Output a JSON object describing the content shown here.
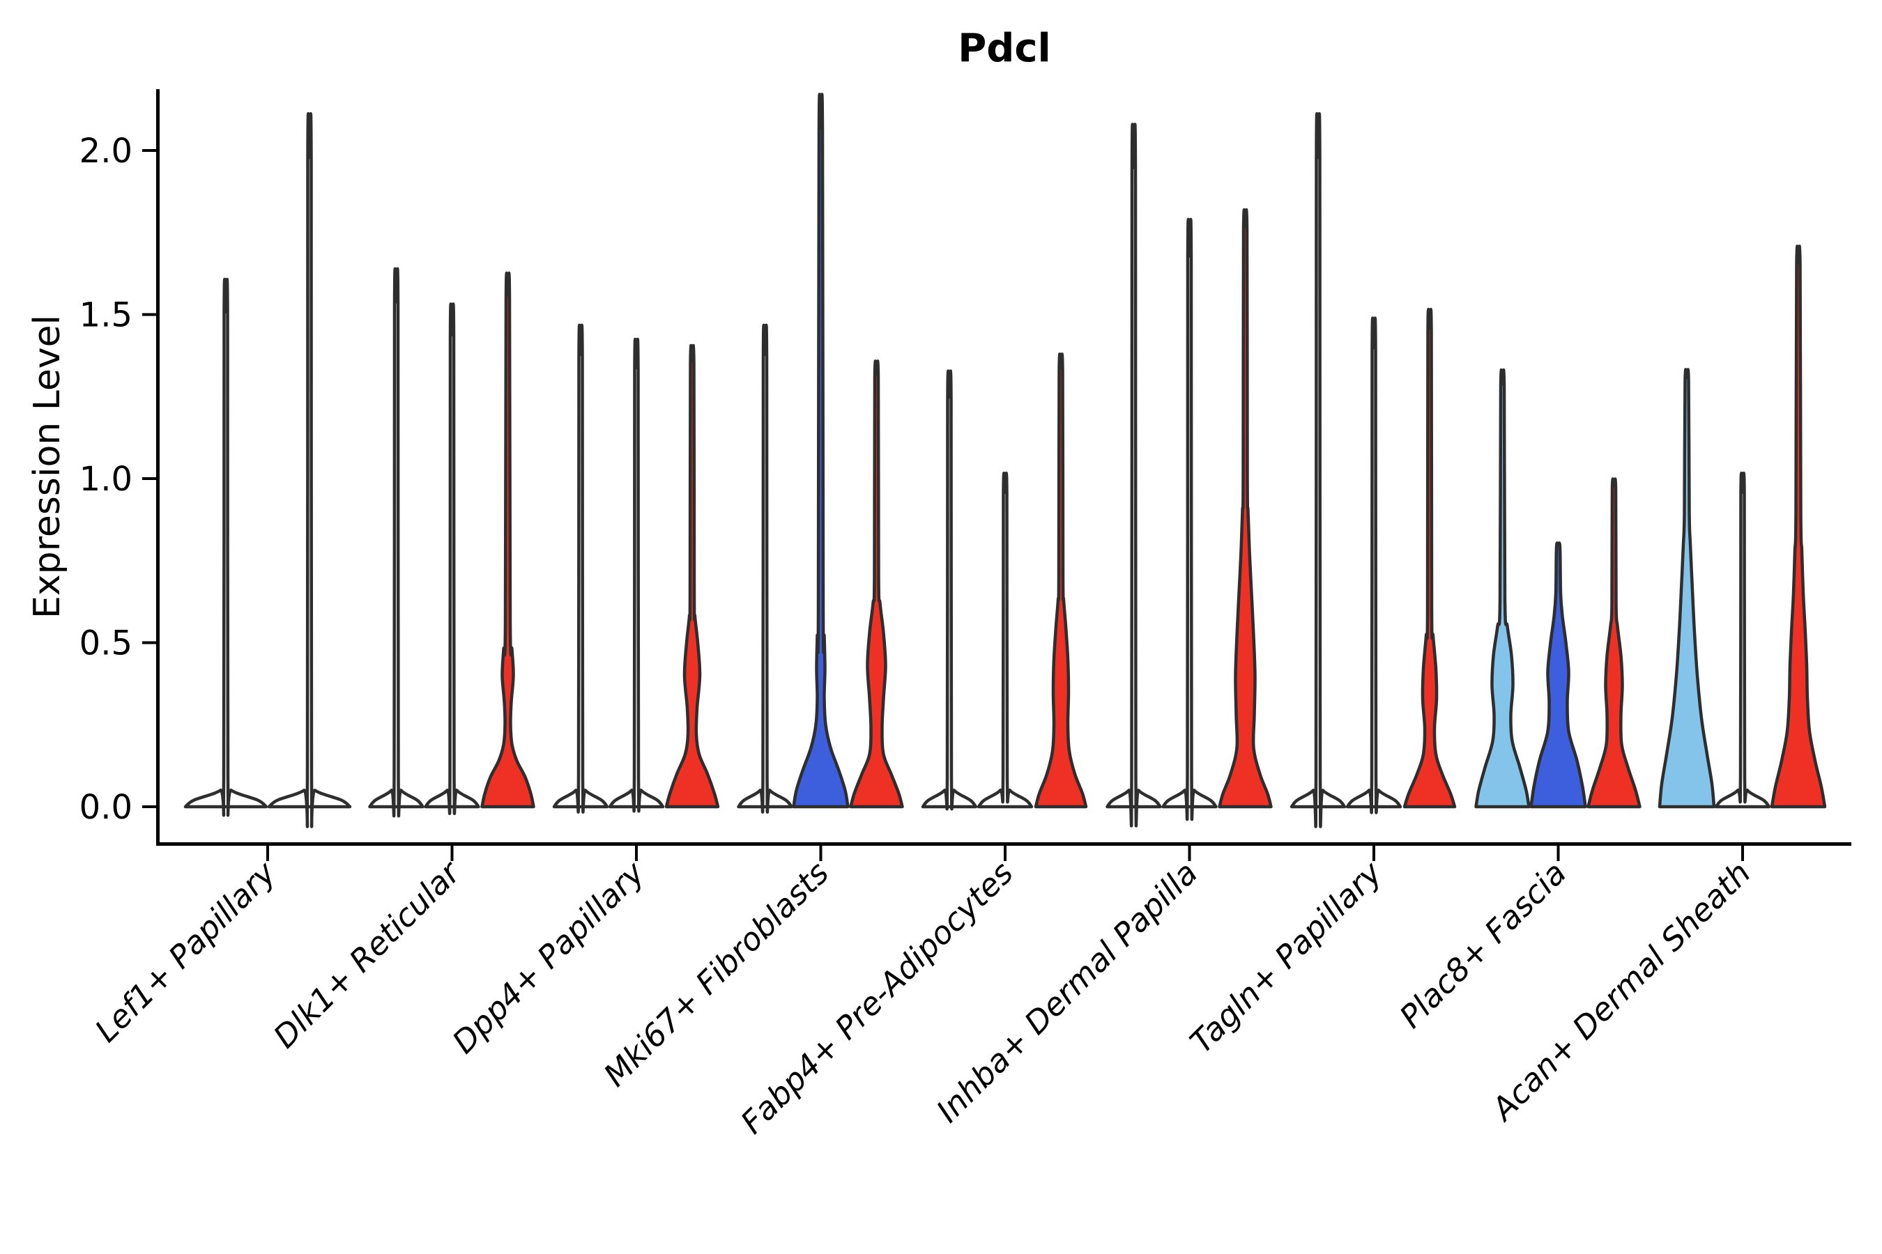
{
  "title": "Pdcl",
  "y_axis": {
    "label": "Expression Level",
    "ticks": [
      {
        "value": 0.0,
        "label": "0.0"
      },
      {
        "value": 0.5,
        "label": "0.5"
      },
      {
        "value": 1.0,
        "label": "1.0"
      },
      {
        "value": 1.5,
        "label": "1.5"
      },
      {
        "value": 2.0,
        "label": "2.0"
      }
    ]
  },
  "palette": {
    "red": "#EF3125",
    "blue": "#3D5FDD",
    "light_blue": "#85C4EA",
    "none": "#FFFFFF",
    "outline": "#2E2E2E",
    "axis": "#000000"
  },
  "chart_data": {
    "type": "violin",
    "title": "Pdcl",
    "xlabel": "",
    "ylabel": "Expression Level",
    "ylim": [
      -0.11,
      2.19
    ],
    "ytick_values": [
      0.0,
      0.5,
      1.0,
      1.5,
      2.0
    ],
    "legend": "none",
    "grid": false,
    "categories": [
      "Lef1+ Papillary",
      "Dlk1+ Reticular",
      "Dpp4+ Papillary",
      "Mki67+ Fibroblasts",
      "Fabp4+ Pre-Adipocytes",
      "Inhba+ Dermal Papilla",
      "Tagln+ Papillary",
      "Plac8+ Fascia",
      "Acan+ Dermal Sheath"
    ],
    "groups": [
      {
        "category": "Lef1+ Papillary",
        "violins": [
          {
            "color": "#FFFFFF",
            "max": 1.5,
            "profile": [
              [
                0,
                58
              ],
              [
                0.02,
                46
              ],
              [
                0.05,
                8
              ],
              [
                0.09,
                3
              ],
              [
                1.5,
                2.5
              ]
            ]
          },
          {
            "color": "#FFFFFF",
            "max": 1.97,
            "profile": [
              [
                0,
                58
              ],
              [
                0.02,
                46
              ],
              [
                0.05,
                8
              ],
              [
                0.09,
                3
              ],
              [
                1.97,
                2.5
              ]
            ]
          }
        ]
      },
      {
        "category": "Dlk1+ Reticular",
        "violins": [
          {
            "color": "#FFFFFF",
            "max": 1.53,
            "profile": [
              [
                0,
                38
              ],
              [
                0.02,
                30
              ],
              [
                0.05,
                7
              ],
              [
                0.09,
                3
              ],
              [
                1.53,
                2.5
              ]
            ]
          },
          {
            "color": "#FFFFFF",
            "max": 1.43,
            "profile": [
              [
                0,
                38
              ],
              [
                0.02,
                30
              ],
              [
                0.05,
                7
              ],
              [
                0.09,
                3
              ],
              [
                1.43,
                2.5
              ]
            ]
          },
          {
            "color": "#EF3125",
            "max": 1.55,
            "profile": [
              [
                0,
                37
              ],
              [
                0.04,
                33
              ],
              [
                0.09,
                25
              ],
              [
                0.14,
                13
              ],
              [
                0.19,
                6
              ],
              [
                0.25,
                4
              ],
              [
                0.32,
                5
              ],
              [
                0.4,
                8
              ],
              [
                0.48,
                6
              ],
              [
                0.56,
                3.5
              ],
              [
                1.55,
                2.5
              ]
            ]
          }
        ]
      },
      {
        "category": "Dpp4+ Papillary",
        "violins": [
          {
            "color": "#FFFFFF",
            "max": 1.37,
            "profile": [
              [
                0,
                38
              ],
              [
                0.02,
                30
              ],
              [
                0.05,
                7
              ],
              [
                0.09,
                3
              ],
              [
                1.37,
                2.5
              ]
            ]
          },
          {
            "color": "#FFFFFF",
            "max": 1.33,
            "profile": [
              [
                0,
                38
              ],
              [
                0.02,
                30
              ],
              [
                0.05,
                7
              ],
              [
                0.09,
                3
              ],
              [
                1.33,
                2.5
              ]
            ]
          },
          {
            "color": "#EF3125",
            "max": 1.35,
            "profile": [
              [
                0,
                37
              ],
              [
                0.04,
                32
              ],
              [
                0.1,
                22
              ],
              [
                0.16,
                10
              ],
              [
                0.22,
                6
              ],
              [
                0.3,
                7
              ],
              [
                0.4,
                11
              ],
              [
                0.5,
                8
              ],
              [
                0.58,
                4
              ],
              [
                0.64,
                3
              ],
              [
                1.35,
                2.5
              ]
            ]
          }
        ]
      },
      {
        "category": "Mki67+ Fibroblasts",
        "violins": [
          {
            "color": "#FFFFFF",
            "max": 1.37,
            "profile": [
              [
                0,
                38
              ],
              [
                0.02,
                30
              ],
              [
                0.05,
                7
              ],
              [
                0.09,
                3
              ],
              [
                1.37,
                2.5
              ]
            ]
          },
          {
            "color": "#3D5FDD",
            "max": 2.06,
            "profile": [
              [
                0,
                39
              ],
              [
                0.05,
                35
              ],
              [
                0.11,
                26
              ],
              [
                0.18,
                14
              ],
              [
                0.25,
                7
              ],
              [
                0.33,
                5
              ],
              [
                0.42,
                6
              ],
              [
                0.52,
                5
              ],
              [
                0.6,
                3.5
              ],
              [
                2.06,
                2.5
              ]
            ]
          },
          {
            "color": "#EF3125",
            "max": 1.31,
            "profile": [
              [
                0,
                37
              ],
              [
                0.04,
                32
              ],
              [
                0.1,
                21
              ],
              [
                0.16,
                10
              ],
              [
                0.24,
                8
              ],
              [
                0.33,
                10
              ],
              [
                0.43,
                13
              ],
              [
                0.53,
                10
              ],
              [
                0.62,
                5
              ],
              [
                0.7,
                3
              ],
              [
                1.31,
                2.5
              ]
            ]
          }
        ]
      },
      {
        "category": "Fabp4+ Pre-Adipocytes",
        "violins": [
          {
            "color": "#FFFFFF",
            "max": 1.24,
            "profile": [
              [
                0,
                38
              ],
              [
                0.02,
                30
              ],
              [
                0.05,
                7
              ],
              [
                0.09,
                3
              ],
              [
                1.24,
                2.5
              ]
            ]
          },
          {
            "color": "#FFFFFF",
            "max": 0.95,
            "profile": [
              [
                0,
                38
              ],
              [
                0.02,
                30
              ],
              [
                0.05,
                7
              ],
              [
                0.09,
                3
              ],
              [
                0.95,
                2.5
              ]
            ]
          },
          {
            "color": "#EF3125",
            "max": 1.33,
            "profile": [
              [
                0,
                36
              ],
              [
                0.04,
                31
              ],
              [
                0.1,
                20
              ],
              [
                0.17,
                12
              ],
              [
                0.25,
                10
              ],
              [
                0.35,
                11
              ],
              [
                0.45,
                10
              ],
              [
                0.55,
                7
              ],
              [
                0.63,
                4
              ],
              [
                0.7,
                3
              ],
              [
                1.33,
                2.5
              ]
            ]
          }
        ]
      },
      {
        "category": "Inhba+ Dermal Papilla",
        "violins": [
          {
            "color": "#FFFFFF",
            "max": 1.94,
            "profile": [
              [
                0,
                38
              ],
              [
                0.02,
                30
              ],
              [
                0.05,
                7
              ],
              [
                0.09,
                3
              ],
              [
                1.94,
                2.5
              ]
            ]
          },
          {
            "color": "#FFFFFF",
            "max": 1.67,
            "profile": [
              [
                0,
                38
              ],
              [
                0.02,
                30
              ],
              [
                0.05,
                7
              ],
              [
                0.09,
                3
              ],
              [
                1.67,
                2.5
              ]
            ]
          },
          {
            "color": "#EF3125",
            "max": 1.76,
            "profile": [
              [
                0,
                37
              ],
              [
                0.04,
                32
              ],
              [
                0.1,
                21
              ],
              [
                0.18,
                12
              ],
              [
                0.28,
                13
              ],
              [
                0.4,
                14
              ],
              [
                0.52,
                12
              ],
              [
                0.65,
                9
              ],
              [
                0.78,
                6
              ],
              [
                0.9,
                4
              ],
              [
                1.0,
                3
              ],
              [
                1.76,
                2.5
              ]
            ]
          }
        ]
      },
      {
        "category": "Tagln+ Papillary",
        "violins": [
          {
            "color": "#FFFFFF",
            "max": 1.97,
            "profile": [
              [
                0,
                38
              ],
              [
                0.02,
                30
              ],
              [
                0.05,
                7
              ],
              [
                0.09,
                3
              ],
              [
                1.97,
                2.5
              ]
            ]
          },
          {
            "color": "#FFFFFF",
            "max": 1.39,
            "profile": [
              [
                0,
                38
              ],
              [
                0.02,
                30
              ],
              [
                0.05,
                7
              ],
              [
                0.09,
                3
              ],
              [
                1.39,
                2.5
              ]
            ]
          },
          {
            "color": "#EF3125",
            "max": 1.45,
            "profile": [
              [
                0,
                36
              ],
              [
                0.04,
                30
              ],
              [
                0.1,
                18
              ],
              [
                0.16,
                9
              ],
              [
                0.24,
                7
              ],
              [
                0.33,
                10
              ],
              [
                0.42,
                9
              ],
              [
                0.52,
                5
              ],
              [
                0.6,
                3
              ],
              [
                1.45,
                2.5
              ]
            ]
          }
        ]
      },
      {
        "category": "Plac8+ Fascia",
        "violins": [
          {
            "color": "#85C4EA",
            "max": 1.28,
            "profile": [
              [
                0,
                38
              ],
              [
                0.05,
                34
              ],
              [
                0.12,
                25
              ],
              [
                0.2,
                14
              ],
              [
                0.28,
                12
              ],
              [
                0.37,
                15
              ],
              [
                0.46,
                13
              ],
              [
                0.55,
                7
              ],
              [
                0.63,
                3.5
              ],
              [
                1.28,
                2.5
              ]
            ]
          },
          {
            "color": "#3D5FDD",
            "max": 0.79,
            "profile": [
              [
                0,
                39
              ],
              [
                0.06,
                35
              ],
              [
                0.14,
                27
              ],
              [
                0.23,
                15
              ],
              [
                0.32,
                13
              ],
              [
                0.41,
                15
              ],
              [
                0.5,
                11
              ],
              [
                0.58,
                6
              ],
              [
                0.65,
                3.5
              ],
              [
                0.79,
                2.5
              ]
            ]
          },
          {
            "color": "#EF3125",
            "max": 0.97,
            "profile": [
              [
                0,
                37
              ],
              [
                0.05,
                31
              ],
              [
                0.12,
                20
              ],
              [
                0.19,
                11
              ],
              [
                0.28,
                10
              ],
              [
                0.37,
                12
              ],
              [
                0.46,
                10
              ],
              [
                0.55,
                5
              ],
              [
                0.62,
                3
              ],
              [
                0.97,
                2.5
              ]
            ]
          }
        ]
      },
      {
        "category": "Acan+ Dermal Sheath",
        "violins": [
          {
            "color": "#85C4EA",
            "max": 1.3,
            "profile": [
              [
                0,
                39
              ],
              [
                0.07,
                36
              ],
              [
                0.16,
                29
              ],
              [
                0.27,
                21
              ],
              [
                0.4,
                15
              ],
              [
                0.53,
                11
              ],
              [
                0.66,
                8
              ],
              [
                0.8,
                5
              ],
              [
                0.9,
                3.5
              ],
              [
                1.3,
                2.5
              ]
            ]
          },
          {
            "color": "#FFFFFF",
            "max": 0.95,
            "profile": [
              [
                0,
                38
              ],
              [
                0.02,
                30
              ],
              [
                0.05,
                7
              ],
              [
                0.09,
                3
              ],
              [
                0.95,
                2.5
              ]
            ]
          },
          {
            "color": "#EF3125",
            "max": 1.65,
            "profile": [
              [
                0,
                38
              ],
              [
                0.06,
                33
              ],
              [
                0.14,
                24
              ],
              [
                0.23,
                16
              ],
              [
                0.33,
                13
              ],
              [
                0.43,
                12
              ],
              [
                0.53,
                10
              ],
              [
                0.65,
                7
              ],
              [
                0.78,
                5
              ],
              [
                0.9,
                3.5
              ],
              [
                1.65,
                2.5
              ]
            ]
          }
        ]
      }
    ]
  }
}
